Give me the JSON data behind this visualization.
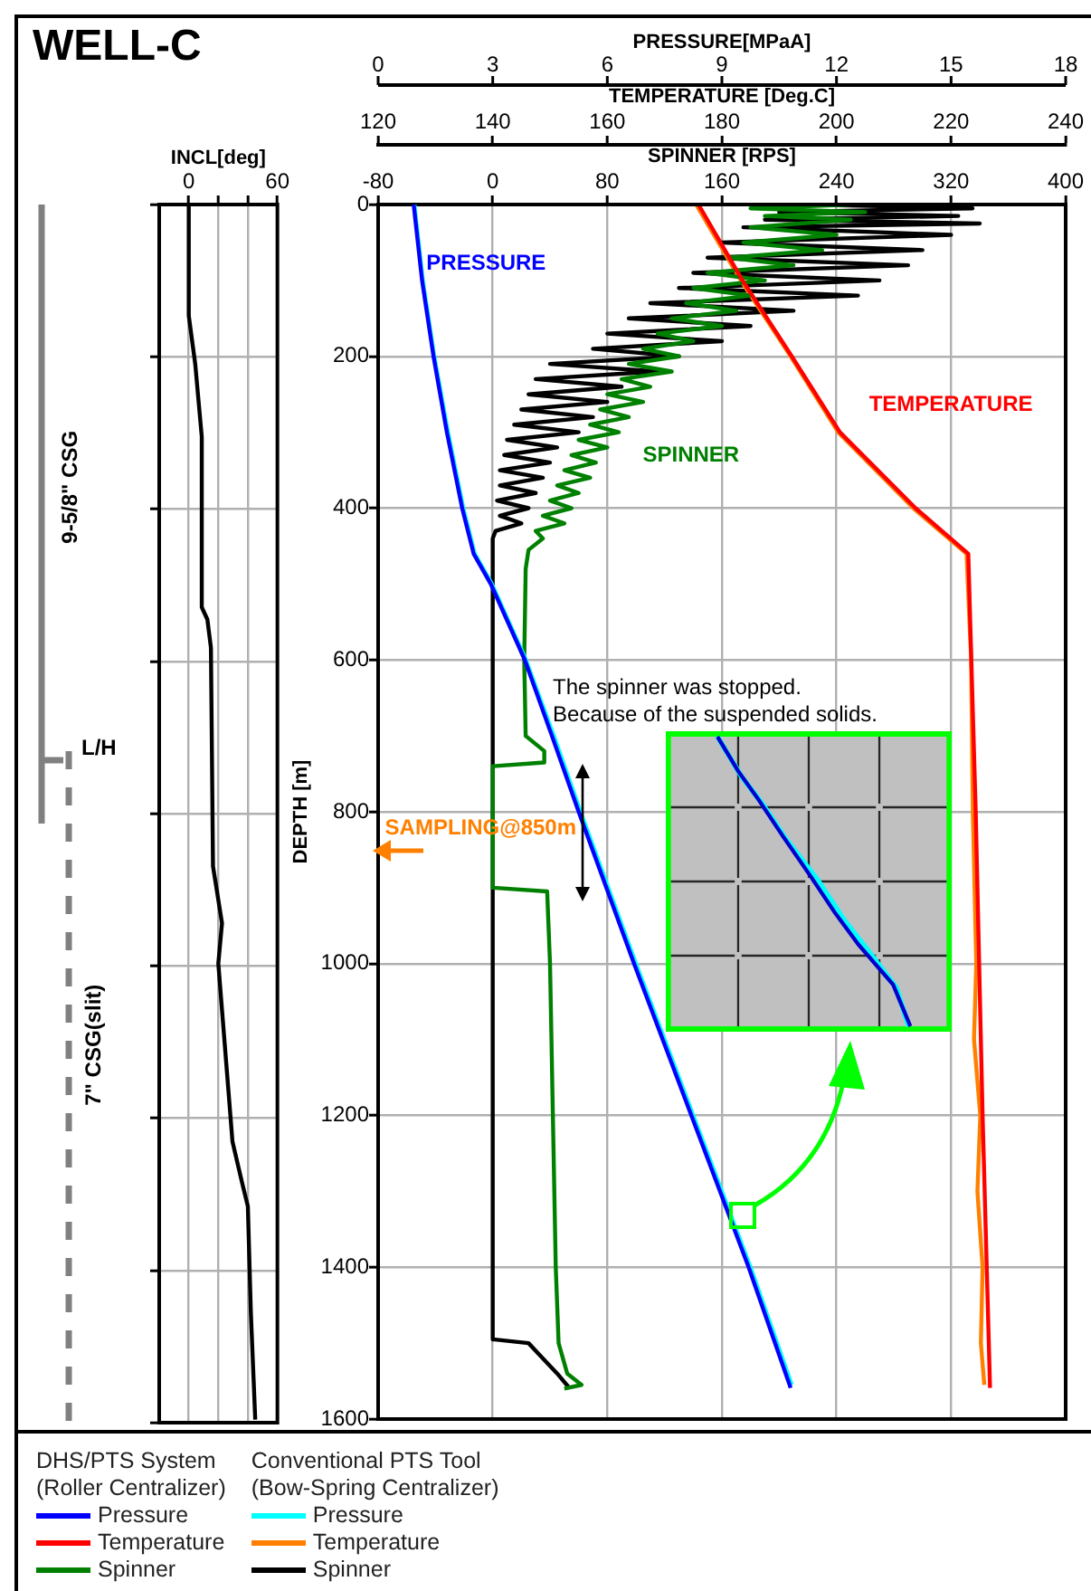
{
  "chart_data": [
    {
      "type": "line",
      "xlabel": "INCL[deg]",
      "xlim": [
        -20,
        60
      ],
      "xticks": [
        0,
        {
          "value": 20,
          "label": null
        },
        {
          "value": 40,
          "label": null
        },
        60
      ],
      "ylim": [
        1600,
        0
      ],
      "yticks": [
        {
          "value": 0,
          "label": null
        },
        {
          "value": 200,
          "label": null
        },
        {
          "value": 400,
          "label": null
        },
        {
          "value": 600,
          "label": null
        },
        {
          "value": 800,
          "label": null
        },
        {
          "value": 1000,
          "label": null
        },
        {
          "value": 1200,
          "label": null
        },
        {
          "value": 1400,
          "label": null
        },
        {
          "value": 1600,
          "label": null
        }
      ],
      "tick_labels": "x",
      "grid": true,
      "series": [
        {
          "color": "#000000",
          "x": [
            0,
            0,
            4.4,
            8.8,
            8.8,
            12.6,
            15,
            16.4,
            22.5,
            20,
            29.6,
            36,
            40,
            42,
            45
          ],
          "values": [
            0,
            146,
            210,
            305,
            529,
            545,
            582,
            869,
            944,
            997,
            1231,
            1284,
            1316,
            1454,
            1596
          ]
        }
      ],
      "annotations": [
        "9-5/8\" CSG",
        "L/H",
        "7\" CSG(slit)"
      ]
    },
    {
      "type": "line",
      "title": "WELL-C",
      "xlabel": "SPINNER [RPS]",
      "x2label": "TEMPERATURE [Deg.C]",
      "ylabel": "DEPTH [m]",
      "xlim": [
        -80,
        400
      ],
      "xticks": [
        -80,
        0,
        80,
        160,
        240,
        320,
        400
      ],
      "x2lim": [
        120,
        240
      ],
      "x2ticks": [
        120,
        140,
        160,
        180,
        200,
        220,
        240
      ],
      "ylim": [
        1600,
        0
      ],
      "yticks": [
        0,
        200,
        400,
        600,
        800,
        1000,
        1200,
        1400,
        1600
      ],
      "grid": true,
      "legend": "bottom",
      "legend_title": [
        "DHS/PTS System\n(Roller Centralizer)",
        "Conventional PTS Tool\n(Bow-Spring Centralizer)"
      ],
      "series": [
        {
          "name": "Temperature",
          "color": "#ff0000",
          "axis": "x2",
          "x": [
            175.9,
            183.6,
            192.2,
            200.6,
            213.8,
            223,
            224.3,
            225.5,
            226.8
          ],
          "values": [
            0,
            100,
            200,
            300,
            400,
            460,
            800,
            1200,
            1559
          ]
        },
        {
          "name": "Spinner",
          "color": "#008000",
          "x": [
            250,
            180,
            260,
            190,
            250,
            180,
            240,
            175,
            230,
            165,
            210,
            150,
            190,
            140,
            180,
            135,
            170,
            125,
            160,
            115,
            140,
            105,
            130,
            95,
            125,
            90,
            110,
            80,
            105,
            75,
            95,
            68,
            88,
            60,
            80,
            55,
            72,
            50,
            68,
            45,
            60,
            40,
            55,
            35,
            50,
            30,
            35,
            25,
            23,
            22,
            23,
            36,
            36,
            0,
            0,
            38,
            40,
            42,
            44,
            46,
            52,
            62,
            50
          ],
          "values": [
            0,
            5,
            10,
            15,
            20,
            30,
            40,
            50,
            60,
            70,
            80,
            90,
            100,
            110,
            120,
            130,
            140,
            150,
            160,
            170,
            180,
            190,
            200,
            210,
            220,
            230,
            240,
            250,
            260,
            270,
            280,
            290,
            300,
            310,
            320,
            330,
            340,
            350,
            360,
            370,
            380,
            390,
            400,
            410,
            420,
            430,
            440,
            455,
            480,
            600,
            700,
            720,
            735,
            740,
            900,
            905,
            1000,
            1200,
            1400,
            1500,
            1540,
            1555,
            1560
          ]
        },
        {
          "name": "Temperature",
          "color": "#ff8000",
          "axis": "x2",
          "x": [
            175.5,
            183.3,
            192,
            200.3,
            213.4,
            222.7,
            223.5,
            223.8,
            224.4,
            224,
            225.1,
            224.6,
            225.5,
            225.2,
            225.8
          ],
          "values": [
            0,
            100,
            200,
            300,
            400,
            460,
            600,
            800,
            1000,
            1100,
            1200,
            1300,
            1400,
            1500,
            1555
          ]
        },
        {
          "name": "Spinner",
          "color": "#000000",
          "x": [
            220,
            335,
            200,
            325,
            190,
            340,
            175,
            320,
            160,
            300,
            150,
            290,
            140,
            270,
            130,
            255,
            110,
            210,
            95,
            180,
            80,
            160,
            70,
            130,
            40,
            115,
            30,
            90,
            25,
            80,
            20,
            70,
            15,
            60,
            10,
            45,
            8,
            40,
            5,
            35,
            5,
            30,
            3,
            25,
            5,
            20,
            2,
            0,
            0,
            25,
            35,
            45,
            53
          ],
          "values": [
            0,
            5,
            10,
            15,
            20,
            25,
            30,
            40,
            50,
            60,
            70,
            80,
            90,
            100,
            110,
            120,
            130,
            140,
            150,
            160,
            170,
            180,
            190,
            200,
            210,
            220,
            230,
            240,
            250,
            260,
            270,
            280,
            290,
            300,
            310,
            320,
            330,
            340,
            350,
            360,
            370,
            380,
            390,
            400,
            410,
            420,
            430,
            440,
            1495,
            1500,
            1520,
            1540,
            1558
          ]
        }
      ],
      "annotations": [
        "TEMPERATURE",
        "SPINNER",
        "SAMPLING@850m",
        "The spinner was stopped.\nBecause of the suspended solids."
      ]
    },
    {
      "type": "line",
      "xlabel": "PRESSURE[MPaA]",
      "xlim": [
        0,
        18
      ],
      "xticks": [
        0,
        3,
        6,
        9,
        12,
        15,
        18
      ],
      "ylim": [
        1600,
        0
      ],
      "tick_labels": "x",
      "legend": "bottom",
      "series": [
        {
          "name": "Pressure",
          "color": "#0000ff",
          "x": [
            0.93,
            1.15,
            1.45,
            1.8,
            2.2,
            2.5,
            2.95,
            3.84,
            4.55,
            5.25,
            6.7,
            8.2,
            9.7,
            10.8
          ],
          "values": [
            0,
            100,
            200,
            300,
            400,
            460,
            500,
            600,
            700,
            800,
            1000,
            1200,
            1400,
            1559
          ]
        },
        {
          "name": "Pressure",
          "color": "#00ffff",
          "x": [
            0.95,
            1.17,
            1.47,
            1.83,
            2.23,
            2.53,
            2.98,
            3.87,
            4.6,
            5.3,
            6.75,
            8.25,
            9.75,
            10.83
          ],
          "values": [
            0,
            100,
            200,
            300,
            400,
            460,
            500,
            600,
            700,
            800,
            1000,
            1200,
            1400,
            1555
          ]
        }
      ],
      "annotations": [
        "PRESSURE"
      ]
    }
  ]
}
